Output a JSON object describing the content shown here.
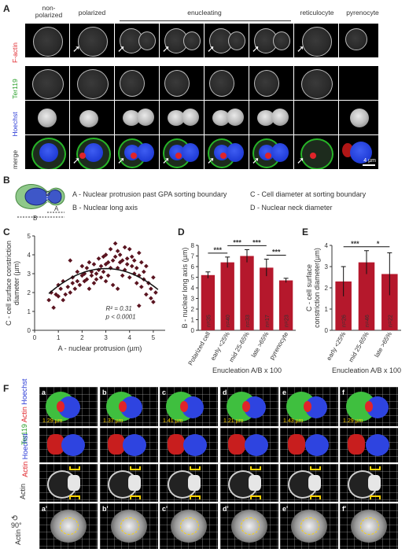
{
  "panel_letters": {
    "A": "A",
    "B": "B",
    "C": "C",
    "D": "D",
    "E": "E",
    "F": "F"
  },
  "panel_a": {
    "column_headers": [
      "non-\npolarized",
      "polarized",
      "enucleating",
      "reticulocyte",
      "pyrenocyte"
    ],
    "row_labels": [
      "F-actin",
      "Ter119",
      "Hoechst",
      "merge"
    ],
    "row_label_colors": [
      "#e0242a",
      "#2aa02a",
      "#2a3ad6",
      "#333333"
    ],
    "scale_bar": "4 µm"
  },
  "panel_b": {
    "legend": [
      "A - Nuclear protrusion past GPA sorting boundary",
      "B - Nuclear long axis",
      "C - Cell diameter at sorting boundary",
      "D - Nuclear neck diameter"
    ],
    "labels": {
      "A": "A",
      "B": "B",
      "D": "D"
    }
  },
  "chart_data": [
    {
      "id": "C",
      "type": "scatter",
      "xlabel": "A - nuclear protrusion (µm)",
      "ylabel": "C - cell surface constriction\ndiameter (µm)",
      "xlim": [
        0,
        5.5
      ],
      "ylim": [
        0,
        5
      ],
      "xticks": [
        0,
        1,
        2,
        3,
        4,
        5
      ],
      "yticks": [
        0,
        1,
        2,
        3,
        4,
        5
      ],
      "annotations": [
        "R² = 0.31",
        "p < 0.0001"
      ],
      "fit": {
        "type": "quadratic",
        "a": -0.23,
        "b": 1.38,
        "c": 1.2,
        "x_range": [
          0.6,
          5.2
        ]
      },
      "points": [
        [
          0.6,
          1.6
        ],
        [
          0.7,
          2.0
        ],
        [
          0.8,
          1.2
        ],
        [
          0.9,
          1.9
        ],
        [
          1.0,
          2.4
        ],
        [
          1.0,
          1.8
        ],
        [
          1.1,
          2.2
        ],
        [
          1.2,
          1.6
        ],
        [
          1.2,
          2.6
        ],
        [
          1.3,
          1.9
        ],
        [
          1.4,
          2.3
        ],
        [
          1.5,
          2.0
        ],
        [
          1.5,
          3.7
        ],
        [
          1.6,
          2.5
        ],
        [
          1.6,
          2.8
        ],
        [
          1.7,
          2.2
        ],
        [
          1.8,
          3.1
        ],
        [
          1.8,
          2.6
        ],
        [
          1.9,
          2.4
        ],
        [
          2.0,
          2.9
        ],
        [
          2.0,
          3.4
        ],
        [
          2.1,
          2.6
        ],
        [
          2.1,
          3.0
        ],
        [
          2.2,
          2.7
        ],
        [
          2.2,
          3.3
        ],
        [
          2.3,
          3.6
        ],
        [
          2.4,
          2.9
        ],
        [
          2.4,
          3.1
        ],
        [
          2.5,
          2.5
        ],
        [
          2.5,
          3.5
        ],
        [
          2.6,
          3.0
        ],
        [
          2.6,
          2.7
        ],
        [
          2.7,
          3.8
        ],
        [
          2.7,
          3.2
        ],
        [
          2.8,
          3.4
        ],
        [
          2.8,
          2.8
        ],
        [
          2.9,
          3.9
        ],
        [
          2.9,
          3.1
        ],
        [
          3.0,
          4.0
        ],
        [
          3.0,
          2.6
        ],
        [
          3.1,
          3.6
        ],
        [
          3.1,
          2.9
        ],
        [
          3.2,
          4.3
        ],
        [
          3.2,
          3.3
        ],
        [
          3.3,
          3.7
        ],
        [
          3.3,
          2.4
        ],
        [
          3.4,
          4.6
        ],
        [
          3.4,
          3.9
        ],
        [
          3.5,
          3.3
        ],
        [
          3.5,
          4.2
        ],
        [
          3.6,
          3.6
        ],
        [
          3.6,
          4.0
        ],
        [
          3.7,
          2.9
        ],
        [
          3.7,
          3.7
        ],
        [
          3.8,
          4.4
        ],
        [
          3.8,
          3.2
        ],
        [
          3.9,
          3.8
        ],
        [
          3.9,
          3.5
        ],
        [
          4.0,
          4.3
        ],
        [
          4.0,
          2.8
        ],
        [
          4.1,
          3.4
        ],
        [
          4.1,
          3.9
        ],
        [
          4.2,
          3.0
        ],
        [
          4.2,
          3.7
        ],
        [
          4.3,
          2.5
        ],
        [
          4.3,
          3.3
        ],
        [
          4.4,
          4.1
        ],
        [
          4.4,
          2.9
        ],
        [
          4.5,
          3.6
        ],
        [
          4.5,
          2.3
        ],
        [
          4.6,
          3.1
        ],
        [
          4.6,
          2.7
        ],
        [
          4.7,
          1.9
        ],
        [
          4.7,
          3.4
        ],
        [
          4.8,
          2.5
        ],
        [
          4.9,
          2.2
        ],
        [
          4.9,
          1.7
        ],
        [
          5.0,
          2.8
        ],
        [
          5.0,
          1.5
        ],
        [
          5.1,
          2.0
        ],
        [
          3.5,
          2.2
        ],
        [
          3.0,
          3.5
        ],
        [
          2.3,
          2.2
        ],
        [
          4.4,
          1.3
        ]
      ]
    },
    {
      "id": "D",
      "type": "bar",
      "categories": [
        "Polarized cell",
        "early <25%",
        "mid 25-65%",
        "late >65%",
        "pyrenocyte"
      ],
      "values": [
        5.2,
        6.4,
        7.0,
        5.9,
        4.7
      ],
      "errors": [
        0.3,
        0.5,
        0.6,
        0.8,
        0.2
      ],
      "n_labels": [
        "n=35",
        "n=40",
        "n=33",
        "n=17",
        "n=23"
      ],
      "ylabel": "B - nuclear long axis (µm)",
      "xlabel": "Enucleation A/B x 100",
      "ylim": [
        0,
        8
      ],
      "yticks": [
        0,
        1,
        2,
        3,
        4,
        5,
        6,
        7,
        8
      ],
      "significance": [
        {
          "from": 0,
          "to": 1,
          "label": "***"
        },
        {
          "from": 1,
          "to": 2,
          "label": "***"
        },
        {
          "from": 2,
          "to": 3,
          "label": "***"
        },
        {
          "from": 3,
          "to": 4,
          "label": "***"
        }
      ]
    },
    {
      "id": "E",
      "type": "bar",
      "categories": [
        "early <25%",
        "mid 25-65%",
        "late >65%"
      ],
      "values": [
        2.3,
        3.2,
        2.65
      ],
      "errors": [
        0.7,
        0.55,
        1.0
      ],
      "n_labels": [
        "n=26",
        "n=46",
        "n=22"
      ],
      "ylabel": "C - cell surface\nconstriction diameter(µm)",
      "xlabel": "Enucleation A/B x 100",
      "ylim": [
        0,
        4
      ],
      "yticks": [
        0,
        1,
        2,
        3,
        4
      ],
      "significance": [
        {
          "from": 0,
          "to": 1,
          "label": "***"
        },
        {
          "from": 1,
          "to": 2,
          "label": "*"
        }
      ]
    }
  ],
  "panel_f": {
    "column_letters": [
      "a",
      "b",
      "c",
      "d",
      "e",
      "f"
    ],
    "bottom_letters": [
      "a'",
      "b'",
      "c'",
      "d'",
      "e'",
      "f'"
    ],
    "row_labels": {
      "row1": [
        "Ter119",
        "Actin",
        "Hoechst"
      ],
      "row2": [
        "Actin",
        "Hoechst"
      ],
      "row3": "Actin",
      "row4": "Actin",
      "rotate": "90°"
    },
    "scale_labels": [
      "1.29 µm",
      "1.37 µm",
      "1.41 µm",
      "1.21 µm",
      "1.43 µm",
      "1.29 µm"
    ],
    "colors": {
      "red": "#e0242a",
      "green": "#2aa02a",
      "blue": "#2a3ad6",
      "yellow": "#ffd400"
    }
  }
}
